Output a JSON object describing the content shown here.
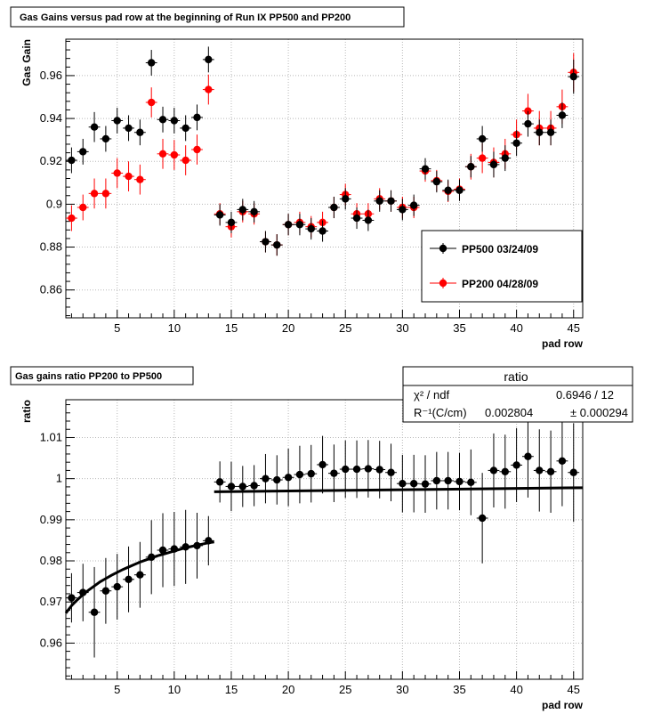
{
  "chart_data": [
    {
      "type": "scatter",
      "title": "Gas Gains versus pad row at the beginning of Run IX PP500 and PP200",
      "xlabel": "pad row",
      "ylabel": "Gas Gain",
      "xlim": [
        0.5,
        45.8
      ],
      "ylim": [
        0.847,
        0.977
      ],
      "xticks": [
        5,
        10,
        15,
        20,
        25,
        30,
        35,
        40,
        45
      ],
      "yticks": [
        0.86,
        0.88,
        0.9,
        0.92,
        0.94,
        0.96
      ],
      "ytick_labels": [
        "0.86",
        "0.88",
        "0.9",
        "0.92",
        "0.94",
        "0.96"
      ],
      "grid": true,
      "legend_position": "bottom-right",
      "series": [
        {
          "name": "PP500 03/24/09",
          "color": "#000000",
          "x": [
            1,
            2,
            3,
            4,
            5,
            6,
            7,
            8,
            9,
            10,
            11,
            12,
            13,
            14,
            15,
            16,
            17,
            18,
            19,
            20,
            21,
            22,
            23,
            24,
            25,
            26,
            27,
            28,
            29,
            30,
            31,
            32,
            33,
            34,
            35,
            36,
            37,
            38,
            39,
            40,
            41,
            42,
            43,
            44,
            45
          ],
          "values": [
            0.9205,
            0.9245,
            0.936,
            0.9305,
            0.939,
            0.9355,
            0.9335,
            0.966,
            0.9395,
            0.939,
            0.9355,
            0.9405,
            0.9675,
            0.895,
            0.8915,
            0.8975,
            0.8965,
            0.8825,
            0.881,
            0.8905,
            0.8905,
            0.8885,
            0.8875,
            0.8985,
            0.9025,
            0.8935,
            0.8925,
            0.9015,
            0.9015,
            0.8975,
            0.8995,
            0.9165,
            0.9105,
            0.9065,
            0.9065,
            0.9175,
            0.9305,
            0.9185,
            0.9215,
            0.9285,
            0.9375,
            0.9335,
            0.9335,
            0.9415,
            0.9595
          ],
          "errors": [
            0.006,
            0.006,
            0.007,
            0.006,
            0.006,
            0.006,
            0.006,
            0.006,
            0.006,
            0.006,
            0.006,
            0.006,
            0.006,
            0.005,
            0.005,
            0.005,
            0.005,
            0.005,
            0.005,
            0.005,
            0.005,
            0.005,
            0.005,
            0.005,
            0.005,
            0.005,
            0.005,
            0.005,
            0.005,
            0.005,
            0.005,
            0.005,
            0.005,
            0.005,
            0.005,
            0.005,
            0.006,
            0.006,
            0.006,
            0.006,
            0.006,
            0.006,
            0.006,
            0.006,
            0.008
          ]
        },
        {
          "name": "PP200 04/28/09",
          "color": "#ff0000",
          "x": [
            1,
            2,
            3,
            4,
            5,
            6,
            7,
            8,
            9,
            10,
            11,
            12,
            13,
            14,
            15,
            16,
            17,
            18,
            19,
            20,
            21,
            22,
            23,
            24,
            25,
            26,
            27,
            28,
            29,
            30,
            31,
            32,
            33,
            34,
            35,
            36,
            37,
            38,
            39,
            40,
            41,
            42,
            43,
            44,
            45
          ],
          "values": [
            0.8935,
            0.8985,
            0.905,
            0.905,
            0.9145,
            0.913,
            0.9115,
            0.9475,
            0.9235,
            0.923,
            0.9205,
            0.9255,
            0.9535,
            0.8955,
            0.8895,
            0.8965,
            0.8955,
            0.8825,
            0.881,
            0.8905,
            0.8915,
            0.8895,
            0.8915,
            0.8985,
            0.9045,
            0.8955,
            0.8955,
            0.9025,
            0.9015,
            0.8985,
            0.8985,
            0.9155,
            0.911,
            0.906,
            0.907,
            0.9175,
            0.9215,
            0.9195,
            0.9235,
            0.9325,
            0.9435,
            0.9355,
            0.9355,
            0.9455,
            0.9615
          ],
          "errors": [
            0.006,
            0.006,
            0.007,
            0.007,
            0.007,
            0.007,
            0.007,
            0.007,
            0.007,
            0.007,
            0.007,
            0.007,
            0.007,
            0.005,
            0.005,
            0.005,
            0.005,
            0.005,
            0.005,
            0.005,
            0.005,
            0.005,
            0.005,
            0.005,
            0.005,
            0.005,
            0.005,
            0.005,
            0.005,
            0.005,
            0.005,
            0.005,
            0.005,
            0.005,
            0.005,
            0.006,
            0.007,
            0.007,
            0.007,
            0.007,
            0.008,
            0.008,
            0.008,
            0.008,
            0.009
          ]
        }
      ]
    },
    {
      "type": "scatter",
      "title": "Gas gains ratio PP200 to PP500",
      "xlabel": "pad row",
      "ylabel": "ratio",
      "xlim": [
        0.5,
        45.8
      ],
      "ylim": [
        0.9512,
        1.0192
      ],
      "xticks": [
        5,
        10,
        15,
        20,
        25,
        30,
        35,
        40,
        45
      ],
      "yticks": [
        0.96,
        0.97,
        0.98,
        0.99,
        1.0,
        1.01
      ],
      "ytick_labels": [
        "0.96",
        "0.97",
        "0.98",
        "0.99",
        "1",
        "1.01"
      ],
      "grid": true,
      "series": [
        {
          "name": "",
          "color": "#000000",
          "x": [
            1,
            2,
            3,
            4,
            5,
            6,
            7,
            8,
            9,
            10,
            11,
            12,
            13,
            14,
            15,
            16,
            17,
            18,
            19,
            20,
            21,
            22,
            23,
            24,
            25,
            26,
            27,
            28,
            29,
            30,
            31,
            32,
            33,
            34,
            35,
            36,
            37,
            38,
            39,
            40,
            41,
            42,
            43,
            44,
            45
          ],
          "values": [
            0.971,
            0.9723,
            0.9675,
            0.9727,
            0.9737,
            0.9755,
            0.9766,
            0.9809,
            0.9826,
            0.9829,
            0.9834,
            0.9837,
            0.9849,
            0.9992,
            0.9981,
            0.9981,
            0.9983,
            1.0,
            0.9997,
            1.0003,
            1.001,
            1.0012,
            1.0034,
            1.0013,
            1.0023,
            1.0023,
            1.0024,
            1.0022,
            1.0015,
            0.9988,
            0.9988,
            0.9987,
            0.9995,
            0.9995,
            0.9993,
            0.9991,
            0.9904,
            1.002,
            1.0017,
            1.0033,
            1.0054,
            1.002,
            1.0017,
            1.0043,
            1.0015
          ],
          "errors": [
            0.006,
            0.007,
            0.011,
            0.008,
            0.008,
            0.008,
            0.008,
            0.009,
            0.009,
            0.009,
            0.009,
            0.008,
            0.006,
            0.005,
            0.006,
            0.005,
            0.005,
            0.006,
            0.006,
            0.007,
            0.007,
            0.007,
            0.007,
            0.007,
            0.007,
            0.007,
            0.007,
            0.007,
            0.007,
            0.007,
            0.007,
            0.007,
            0.007,
            0.007,
            0.007,
            0.008,
            0.011,
            0.009,
            0.009,
            0.009,
            0.01,
            0.01,
            0.01,
            0.011,
            0.012
          ]
        }
      ],
      "fit": {
        "type": "line",
        "low_x": [
          0.5,
          1,
          1.5,
          2,
          2.5,
          3,
          3.5,
          4,
          4.5,
          5,
          5.5,
          6,
          6.5,
          7,
          7.5,
          8,
          8.5,
          9,
          9.5,
          10,
          10.5,
          11,
          11.5,
          12,
          12.5,
          13,
          13.5
        ],
        "low_y": [
          0.9673,
          0.9691,
          0.9705,
          0.9718,
          0.9729,
          0.9739,
          0.9749,
          0.9757,
          0.9765,
          0.9772,
          0.9779,
          0.9785,
          0.9791,
          0.9797,
          0.9802,
          0.9807,
          0.9812,
          0.9816,
          0.982,
          0.9824,
          0.9828,
          0.9832,
          0.9835,
          0.9838,
          0.9841,
          0.9844,
          0.9846
        ],
        "high_x": [
          13.5,
          45.8
        ],
        "high_y": [
          0.9968,
          0.9978
        ]
      },
      "stats_box": {
        "title": "ratio",
        "row1_label": "χ² / ndf",
        "row1_value": "0.6946 / 12",
        "row2_label": "R⁻¹(C/cm)",
        "row2_value": "0.002804",
        "row2_error": "± 0.000294"
      }
    }
  ]
}
